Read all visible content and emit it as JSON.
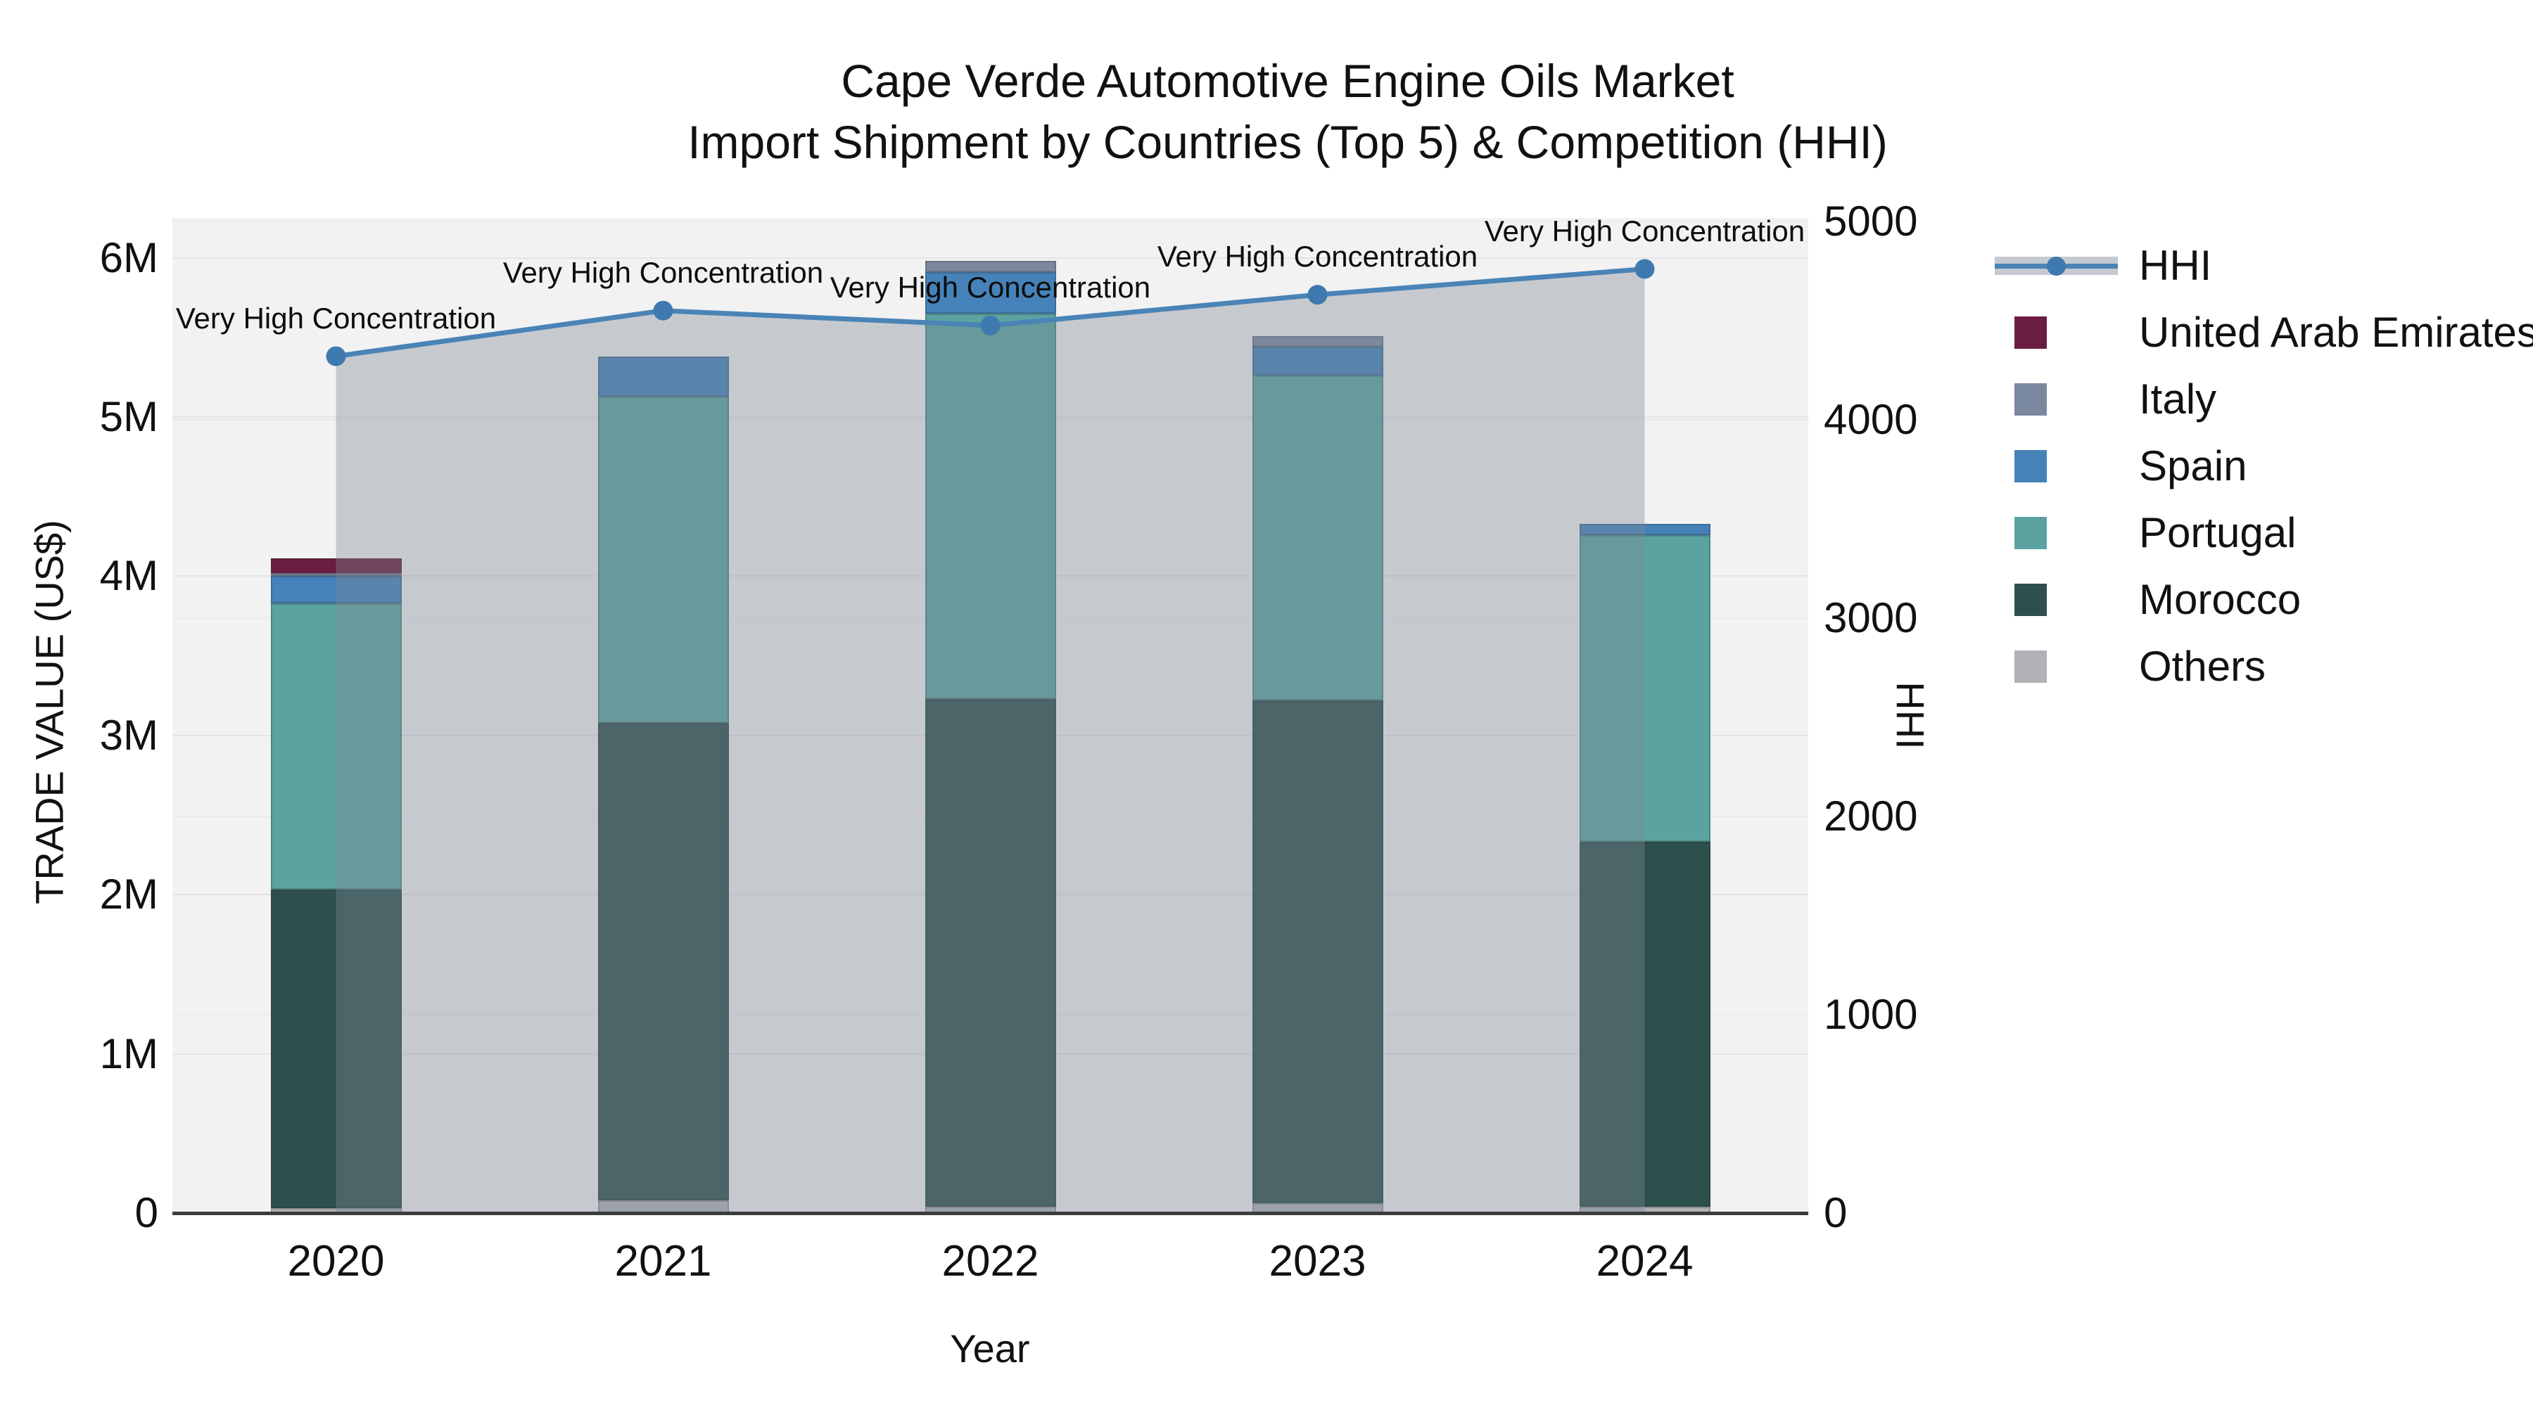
{
  "title": {
    "line1": "Cape Verde Automotive Engine Oils Market",
    "line2": "Import Shipment by Countries (Top 5) & Competition (HHI)"
  },
  "chart_data": {
    "type": "bar",
    "subtype": "stacked-bars-with-line-overlay",
    "categories": [
      "2020",
      "2021",
      "2022",
      "2023",
      "2024"
    ],
    "values_unit": "millions of US$",
    "series": [
      {
        "name": "Others",
        "color": "#b0b2b6",
        "values": [
          0.03,
          0.08,
          0.04,
          0.06,
          0.04
        ]
      },
      {
        "name": "Morocco",
        "color": "#2d504c",
        "values": [
          2.0,
          3.0,
          3.19,
          3.16,
          2.29
        ]
      },
      {
        "name": "Portugal",
        "color": "#5ba3a1",
        "values": [
          1.8,
          2.05,
          2.42,
          2.04,
          1.93
        ]
      },
      {
        "name": "Spain",
        "color": "#4682ba",
        "values": [
          0.17,
          0.25,
          0.26,
          0.18,
          0.07
        ]
      },
      {
        "name": "Italy",
        "color": "#7b89a0",
        "values": [
          0.02,
          0.0,
          0.07,
          0.07,
          0.0
        ]
      },
      {
        "name": "United Arab Emirates",
        "color": "#6b1d3f",
        "values": [
          0.09,
          0.0,
          0.0,
          0.0,
          0.0
        ]
      }
    ],
    "bar_totals": [
      4.11,
      5.38,
      5.98,
      5.51,
      4.33
    ],
    "line_series": {
      "name": "HHI",
      "color": "#4a84b6",
      "marker_color": "#3e79af",
      "area_color": "rgba(126,136,150,0.38)",
      "values": [
        4320,
        4550,
        4475,
        4630,
        4760
      ]
    },
    "annotations": [
      "Very High Concentration",
      "Very High Concentration",
      "Very High Concentration",
      "Very High Concentration",
      "Very High Concentration"
    ],
    "xlabel": "Year",
    "ylabel": "TRADE VALUE (US$)",
    "y2label": "HHI",
    "yticks": [
      {
        "label": "0",
        "v": 0
      },
      {
        "label": "1M",
        "v": 1
      },
      {
        "label": "2M",
        "v": 2
      },
      {
        "label": "3M",
        "v": 3
      },
      {
        "label": "4M",
        "v": 4
      },
      {
        "label": "5M",
        "v": 5
      },
      {
        "label": "6M",
        "v": 6
      }
    ],
    "y2ticks": [
      {
        "label": "0",
        "v": 0
      },
      {
        "label": "1000",
        "v": 1000
      },
      {
        "label": "2000",
        "v": 2000
      },
      {
        "label": "3000",
        "v": 3000
      },
      {
        "label": "4000",
        "v": 4000
      },
      {
        "label": "5000",
        "v": 5000
      }
    ],
    "ylim": [
      0,
      6.25
    ],
    "y2lim": [
      0,
      5017
    ],
    "grid": true,
    "legend_position": "right",
    "legend": [
      {
        "name": "HHI",
        "kind": "line"
      },
      {
        "name": "United Arab Emirates",
        "kind": "swatch",
        "color": "#6b1d3f"
      },
      {
        "name": "Italy",
        "kind": "swatch",
        "color": "#7b89a0"
      },
      {
        "name": "Spain",
        "kind": "swatch",
        "color": "#4682ba"
      },
      {
        "name": "Portugal",
        "kind": "swatch",
        "color": "#5ba3a1"
      },
      {
        "name": "Morocco",
        "kind": "swatch",
        "color": "#2d504c"
      },
      {
        "name": "Others",
        "kind": "swatch",
        "color": "#b0b2b6"
      }
    ]
  }
}
